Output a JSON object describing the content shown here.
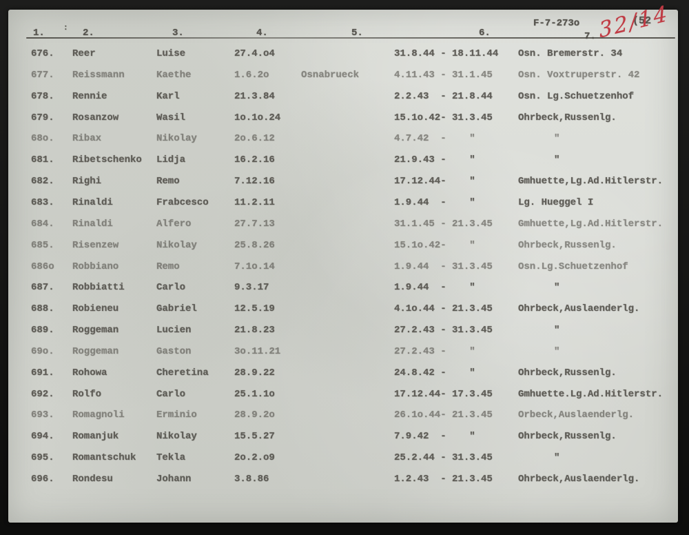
{
  "document": {
    "reference_number": "F-7-273o",
    "page_number": "(52",
    "handwritten_annotation": "32/14",
    "stray_mark": ":",
    "column_headers": [
      "1.",
      "2.",
      "3.",
      "4.",
      "5.",
      "6.",
      "7."
    ],
    "ink_color": "#56544e",
    "paper_color": "#d4d6d0",
    "annotation_red": "#c03a43"
  },
  "table": {
    "rows": [
      {
        "num": "676.",
        "surname": "Reer",
        "firstname": "Luise",
        "birthdate": "27.4.o4",
        "place": "",
        "period": "31.8.44 - 18.11.44",
        "location": "Osn. Bremerstr. 34"
      },
      {
        "num": "677.",
        "surname": "Reissmann",
        "firstname": "Kaethe",
        "birthdate": "1.6.2o",
        "place": "Osnabrueck",
        "period": "4.11.43 - 31.1.45",
        "location": "Osn. Voxtruperstr. 42"
      },
      {
        "num": "678.",
        "surname": "Rennie",
        "firstname": "Karl",
        "birthdate": "21.3.84",
        "place": "",
        "period": "2.2.43  - 21.8.44",
        "location": "Osn. Lg.Schuetzenhof"
      },
      {
        "num": "679.",
        "surname": "Rosanzow",
        "firstname": "Wasil",
        "birthdate": "1o.1o.24",
        "place": "",
        "period": "15.1o.42- 31.3.45",
        "location": "Ohrbeck,Russenlg."
      },
      {
        "num": "68o.",
        "surname": "Ribax",
        "firstname": "Nikolay",
        "birthdate": "2o.6.12",
        "place": "",
        "period": "4.7.42  -    \"",
        "location": "\""
      },
      {
        "num": "681.",
        "surname": "Ribetschenko",
        "firstname": "Lidja",
        "birthdate": "16.2.16",
        "place": "",
        "period": "21.9.43 -    \"",
        "location": "\""
      },
      {
        "num": "682.",
        "surname": "Righi",
        "firstname": "Remo",
        "birthdate": "7.12.16",
        "place": "",
        "period": "17.12.44-    \"",
        "location": "Gmhuette,Lg.Ad.Hitlerstr."
      },
      {
        "num": "683.",
        "surname": "Rinaldi",
        "firstname": "Frabcesco",
        "birthdate": "11.2.11",
        "place": "",
        "period": "1.9.44  -    \"",
        "location": "Lg. Hueggel I"
      },
      {
        "num": "684.",
        "surname": "Rinaldi",
        "firstname": "Alfero",
        "birthdate": "27.7.13",
        "place": "",
        "period": "31.1.45 - 21.3.45",
        "location": "Gmhuette,Lg.Ad.Hitlerstr."
      },
      {
        "num": "685.",
        "surname": "Risenzew",
        "firstname": "Nikolay",
        "birthdate": "25.8.26",
        "place": "",
        "period": "15.1o.42-    \"",
        "location": "Ohrbeck,Russenlg."
      },
      {
        "num": "686o",
        "surname": "Robbiano",
        "firstname": "Remo",
        "birthdate": "7.1o.14",
        "place": "",
        "period": "1.9.44  - 31.3.45",
        "location": "Osn.Lg.Schuetzenhof"
      },
      {
        "num": "687.",
        "surname": "Robbiatti",
        "firstname": "Carlo",
        "birthdate": "9.3.17",
        "place": "",
        "period": "1.9.44  -    \"",
        "location": "\""
      },
      {
        "num": "688.",
        "surname": "Robieneu",
        "firstname": "Gabriel",
        "birthdate": "12.5.19",
        "place": "",
        "period": "4.1o.44 - 21.3.45",
        "location": "Ohrbeck,Auslaenderlg."
      },
      {
        "num": "689.",
        "surname": "Roggeman",
        "firstname": "Lucien",
        "birthdate": "21.8.23",
        "place": "",
        "period": "27.2.43 - 31.3.45",
        "location": "\""
      },
      {
        "num": "69o.",
        "surname": "Roggeman",
        "firstname": "Gaston",
        "birthdate": "3o.11.21",
        "place": "",
        "period": "27.2.43 -    \"",
        "location": "\""
      },
      {
        "num": "691.",
        "surname": "Rohowa",
        "firstname": "Cheretina",
        "birthdate": "28.9.22",
        "place": "",
        "period": "24.8.42 -    \"",
        "location": "Ohrbeck,Russenlg."
      },
      {
        "num": "692.",
        "surname": "Rolfo",
        "firstname": "Carlo",
        "birthdate": "25.1.1o",
        "place": "",
        "period": "17.12.44- 17.3.45",
        "location": "Gmhuette.Lg.Ad.Hitlerstr."
      },
      {
        "num": "693.",
        "surname": "Romagnoli",
        "firstname": "Erminio",
        "birthdate": "28.9.2o",
        "place": "",
        "period": "26.1o.44- 21.3.45",
        "location": "Orbeck,Auslaenderlg."
      },
      {
        "num": "694.",
        "surname": "Romanjuk",
        "firstname": "Nikolay",
        "birthdate": "15.5.27",
        "place": "",
        "period": "7.9.42  -    \"",
        "location": "Ohrbeck,Russenlg."
      },
      {
        "num": "695.",
        "surname": "Romantschuk",
        "firstname": "Tekla",
        "birthdate": "2o.2.o9",
        "place": "",
        "period": "25.2.44 - 31.3.45",
        "location": "\""
      },
      {
        "num": "696.",
        "surname": "Rondesu",
        "firstname": "Johann",
        "birthdate": "3.8.86",
        "place": "",
        "period": "1.2.43  - 21.3.45",
        "location": "Ohrbeck,Auslaenderlg."
      }
    ]
  }
}
